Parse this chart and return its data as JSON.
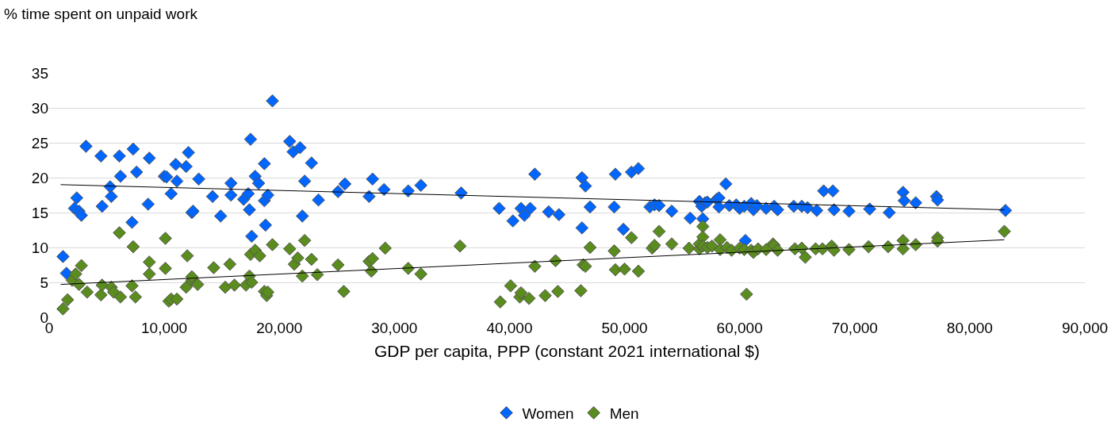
{
  "chart_data": {
    "type": "scatter",
    "ylabel": "% time spent on unpaid work",
    "xlabel": "GDP per capita, PPP (constant 2021 international $)",
    "xlim": [
      0,
      90000
    ],
    "xticks": [
      0,
      {
        "value": 10000,
        "label": "10,000"
      },
      {
        "value": 20000,
        "label": "20,000"
      },
      {
        "value": 30000,
        "label": "30,000"
      },
      {
        "value": 40000,
        "label": "40,000"
      },
      {
        "value": 50000,
        "label": "50,000"
      },
      {
        "value": 60000,
        "label": "60,000"
      },
      {
        "value": 70000,
        "label": "70,000"
      },
      {
        "value": 80000,
        "label": "80,000"
      },
      {
        "value": 90000,
        "label": "90,000"
      }
    ],
    "ylim": [
      0,
      35
    ],
    "yticks": [
      0,
      5,
      10,
      15,
      20,
      25,
      30,
      35
    ],
    "grid": "y",
    "legend": "bottom",
    "marker": "diamond",
    "series": [
      {
        "name": "Women",
        "color": "#0066ff",
        "x": [
          1200,
          1500,
          2200,
          2400,
          2600,
          2800,
          3200,
          4500,
          4600,
          5300,
          5400,
          6100,
          6200,
          7200,
          7300,
          7600,
          8600,
          8700,
          10000,
          10200,
          10600,
          11000,
          11100,
          11900,
          12100,
          12400,
          12500,
          13000,
          14200,
          14900,
          15800,
          15800,
          16900,
          17300,
          17400,
          17500,
          17600,
          17900,
          18200,
          18700,
          18700,
          18800,
          19000,
          19400,
          20900,
          21200,
          21800,
          22000,
          22200,
          22800,
          23400,
          25100,
          25700,
          27800,
          28100,
          29100,
          31200,
          32300,
          35800,
          39100,
          40300,
          41000,
          41300,
          41800,
          42200,
          43400,
          44300,
          46300,
          46300,
          46600,
          47000,
          49100,
          49200,
          49900,
          50600,
          51200,
          52200,
          52600,
          53000,
          54100,
          55700,
          56500,
          56700,
          56800,
          57000,
          57200,
          58000,
          58200,
          58200,
          58800,
          59100,
          59700,
          60000,
          60400,
          60500,
          61000,
          61200,
          61500,
          62300,
          63000,
          63300,
          64700,
          65400,
          65900,
          66700,
          67300,
          68100,
          68200,
          69500,
          71300,
          73000,
          74200,
          74300,
          75300,
          77100,
          77200,
          83100
        ],
        "values": [
          8.7,
          6.3,
          15.6,
          17.1,
          15.2,
          14.6,
          24.5,
          23.1,
          15.9,
          18.7,
          17.3,
          23.1,
          20.2,
          13.6,
          24.1,
          20.8,
          16.2,
          22.8,
          20.2,
          20.1,
          17.7,
          21.9,
          19.5,
          21.6,
          23.6,
          15.0,
          15.2,
          19.8,
          17.3,
          14.5,
          19.2,
          17.5,
          16.9,
          17.7,
          15.4,
          25.5,
          11.6,
          20.2,
          19.2,
          22.0,
          16.7,
          13.2,
          17.5,
          31.0,
          25.2,
          23.7,
          24.3,
          14.5,
          19.5,
          22.1,
          16.8,
          18.0,
          19.1,
          17.3,
          19.8,
          18.3,
          18.1,
          18.9,
          17.8,
          15.6,
          13.8,
          15.6,
          14.6,
          15.6,
          20.5,
          15.1,
          14.7,
          20.0,
          12.8,
          18.8,
          15.8,
          15.8,
          20.5,
          12.6,
          20.8,
          21.3,
          15.8,
          16.1,
          16.0,
          15.2,
          14.2,
          16.6,
          15.9,
          14.1,
          16.4,
          16.5,
          16.9,
          17.1,
          15.8,
          19.1,
          16.0,
          16.1,
          15.6,
          15.9,
          11.0,
          16.3,
          15.4,
          16.0,
          15.6,
          15.9,
          15.4,
          15.9,
          15.9,
          15.7,
          15.3,
          18.1,
          18.1,
          15.4,
          15.2,
          15.5,
          15.0,
          17.9,
          16.7,
          16.4,
          17.3,
          16.8,
          15.3
        ]
      },
      {
        "name": "Men",
        "color": "#5b8c1e",
        "x": [
          1200,
          1600,
          2000,
          2300,
          2600,
          2800,
          3300,
          4500,
          4600,
          5400,
          5600,
          6100,
          6200,
          7200,
          7300,
          7500,
          8700,
          8700,
          10100,
          10100,
          10400,
          10600,
          11100,
          11900,
          12000,
          12400,
          12400,
          12900,
          14300,
          15300,
          15700,
          16100,
          17100,
          17400,
          17500,
          17600,
          17900,
          18300,
          18700,
          18900,
          19000,
          19400,
          20900,
          21300,
          21600,
          22000,
          22200,
          22800,
          23300,
          25100,
          25600,
          27800,
          28000,
          28100,
          29200,
          31200,
          32300,
          35700,
          39200,
          40100,
          40900,
          41000,
          41700,
          42200,
          43100,
          44000,
          44200,
          46200,
          46400,
          46600,
          47000,
          49100,
          49200,
          50000,
          50600,
          51200,
          52400,
          52600,
          53000,
          54100,
          55600,
          56500,
          56500,
          56800,
          56800,
          56800,
          57200,
          57600,
          58300,
          58300,
          58900,
          59300,
          60000,
          60400,
          60600,
          61000,
          61200,
          61600,
          62300,
          62900,
          63000,
          63300,
          64800,
          65400,
          65700,
          66600,
          67200,
          68000,
          68200,
          69500,
          71200,
          72900,
          74200,
          74200,
          75300,
          77200,
          77200,
          83000
        ],
        "values": [
          1.2,
          2.5,
          5.3,
          6.2,
          4.7,
          7.4,
          3.6,
          3.2,
          4.6,
          4.3,
          3.6,
          12.1,
          2.9,
          4.5,
          10.1,
          2.9,
          6.2,
          7.9,
          11.3,
          7.0,
          2.3,
          2.6,
          2.6,
          4.3,
          8.8,
          5.3,
          5.8,
          4.7,
          7.1,
          4.3,
          7.6,
          4.6,
          4.6,
          5.9,
          9.0,
          5.0,
          9.6,
          8.8,
          3.7,
          3.1,
          3.6,
          10.4,
          9.8,
          7.6,
          8.5,
          5.9,
          11.0,
          8.3,
          6.1,
          7.5,
          3.7,
          8.0,
          6.6,
          8.4,
          9.9,
          7.0,
          6.2,
          10.2,
          2.2,
          4.5,
          2.9,
          3.5,
          2.7,
          7.3,
          3.1,
          8.1,
          3.7,
          3.8,
          7.5,
          7.3,
          10.0,
          9.5,
          6.8,
          6.9,
          11.4,
          6.6,
          9.9,
          10.3,
          12.3,
          10.5,
          9.9,
          9.8,
          10.5,
          13.0,
          11.5,
          10.2,
          10.0,
          10.2,
          11.1,
          9.7,
          10.0,
          9.6,
          9.9,
          9.7,
          3.3,
          9.6,
          9.3,
          9.8,
          9.7,
          10.5,
          10.3,
          9.6,
          9.8,
          9.9,
          8.6,
          9.8,
          9.8,
          10.2,
          9.6,
          9.7,
          10.1,
          10.1,
          11.0,
          9.8,
          10.4,
          11.4,
          10.9,
          12.3
        ]
      },
      {
        "type": "line",
        "color": "#000000",
        "marker": "none",
        "x": [
          1000,
          83000
        ],
        "values": [
          19.0,
          15.4
        ]
      },
      {
        "type": "line",
        "color": "#000000",
        "marker": "none",
        "x": [
          1000,
          83000
        ],
        "values": [
          4.7,
          11.1
        ]
      }
    ]
  }
}
